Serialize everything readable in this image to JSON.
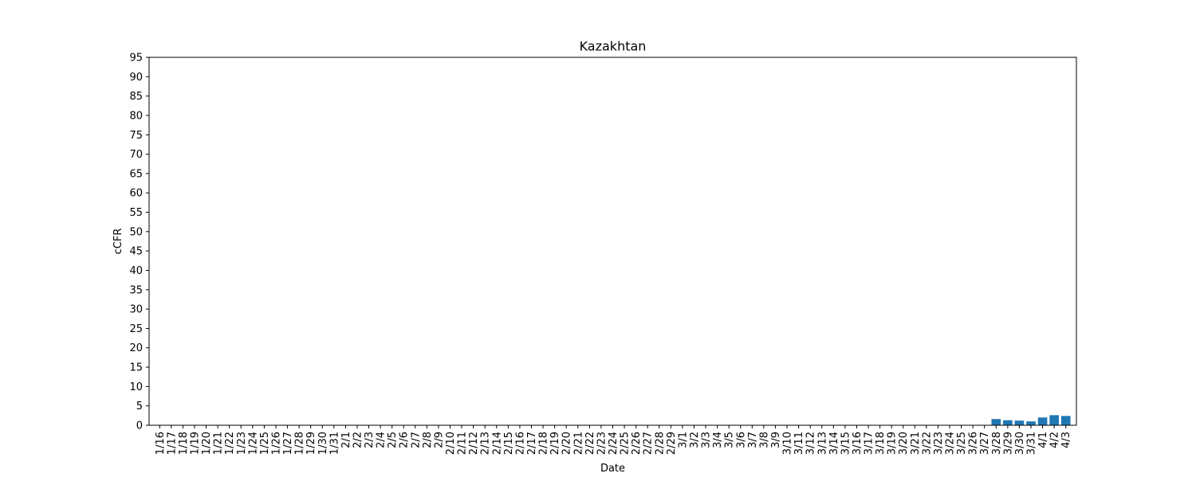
{
  "chart_data": {
    "type": "bar",
    "title": "Kazakhtan",
    "xlabel": "Date",
    "ylabel": "cCFR",
    "ylim": [
      0,
      95
    ],
    "yticks": [
      0,
      5,
      10,
      15,
      20,
      25,
      30,
      35,
      40,
      45,
      50,
      55,
      60,
      65,
      70,
      75,
      80,
      85,
      90,
      95
    ],
    "grid": false,
    "bar_color": "#1f77b4",
    "categories": [
      "1/16",
      "1/17",
      "1/18",
      "1/19",
      "1/20",
      "1/21",
      "1/22",
      "1/23",
      "1/24",
      "1/25",
      "1/26",
      "1/27",
      "1/28",
      "1/29",
      "1/30",
      "1/31",
      "2/1",
      "2/2",
      "2/3",
      "2/4",
      "2/5",
      "2/6",
      "2/7",
      "2/8",
      "2/9",
      "2/10",
      "2/11",
      "2/12",
      "2/13",
      "2/14",
      "2/15",
      "2/16",
      "2/17",
      "2/18",
      "2/19",
      "2/20",
      "2/21",
      "2/22",
      "2/23",
      "2/24",
      "2/25",
      "2/26",
      "2/27",
      "2/28",
      "2/29",
      "3/1",
      "3/2",
      "3/3",
      "3/4",
      "3/5",
      "3/6",
      "3/7",
      "3/8",
      "3/9",
      "3/10",
      "3/11",
      "3/12",
      "3/13",
      "3/14",
      "3/15",
      "3/16",
      "3/17",
      "3/18",
      "3/19",
      "3/20",
      "3/21",
      "3/22",
      "3/23",
      "3/24",
      "3/25",
      "3/26",
      "3/27",
      "3/28",
      "3/29",
      "3/30",
      "3/31",
      "4/1",
      "4/2",
      "4/3"
    ],
    "values": [
      0,
      0,
      0,
      0,
      0,
      0,
      0,
      0,
      0,
      0,
      0,
      0,
      0,
      0,
      0,
      0,
      0,
      0,
      0,
      0,
      0,
      0,
      0,
      0,
      0,
      0,
      0,
      0,
      0,
      0,
      0,
      0,
      0,
      0,
      0,
      0,
      0,
      0,
      0,
      0,
      0,
      0,
      0,
      0,
      0,
      0,
      0,
      0,
      0,
      0,
      0,
      0,
      0,
      0,
      0,
      0,
      0,
      0,
      0,
      0,
      0,
      0,
      0,
      0,
      0,
      0,
      0,
      0,
      0,
      0,
      0,
      0,
      1.6,
      1.3,
      1.2,
      1.0,
      2.0,
      2.6,
      2.4
    ]
  }
}
